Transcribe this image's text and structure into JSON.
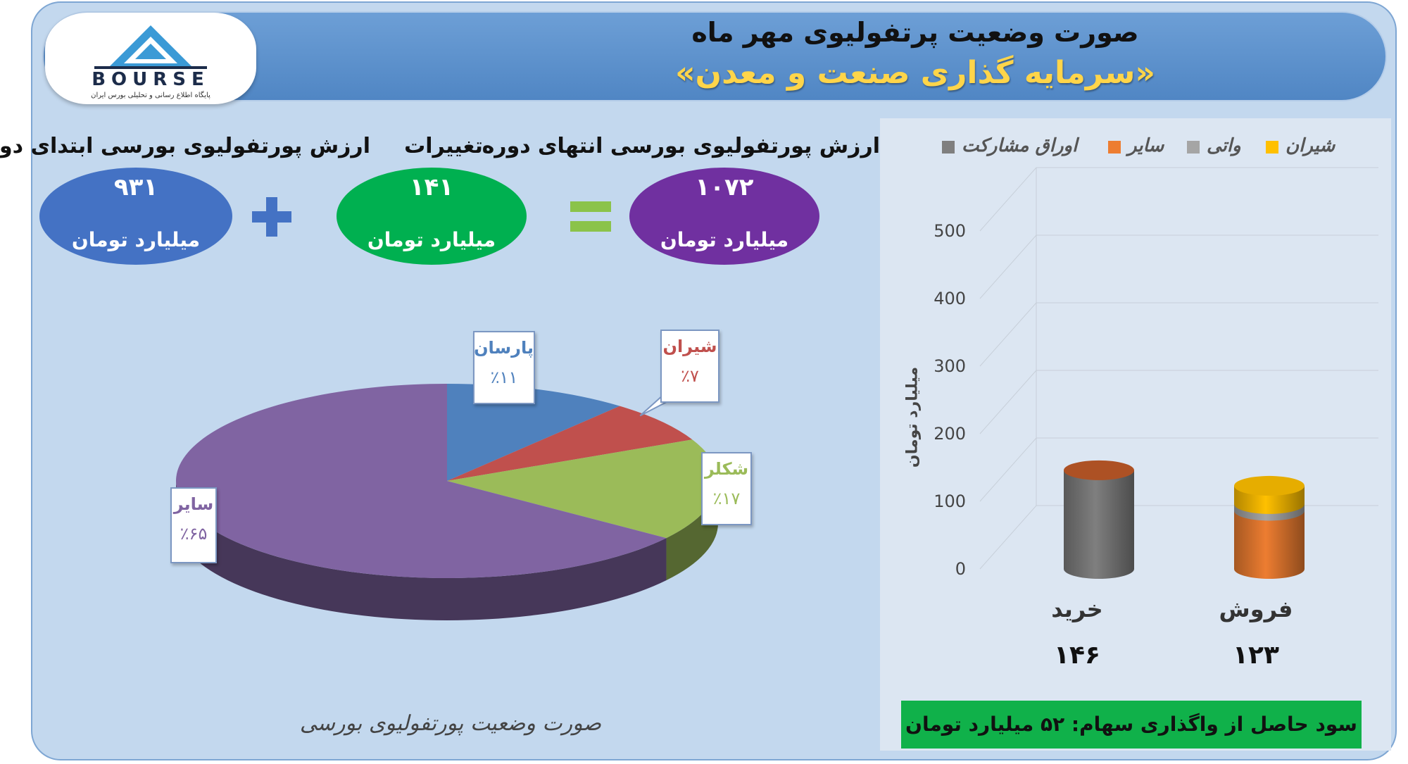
{
  "header": {
    "title": "صورت وضعیت پرتفولیوی مهر ماه",
    "subtitle": "«سرمایه گذاری صنعت و معدن»"
  },
  "logo": {
    "text": "BOURSE",
    "tagline": "پایگاه اطلاع رسانی و تحلیلی بورس ایران"
  },
  "summary": {
    "start": {
      "label": "ارزش پورتفولیوی بورسی ابتدای دوره",
      "value": "۹۳۱",
      "unit": "میلیارد تومان",
      "color": "#4472c4"
    },
    "change": {
      "label": "تغییرات",
      "value": "۱۴۱",
      "unit": "میلیارد تومان",
      "color": "#00b050"
    },
    "end": {
      "label": "ارزش پورتفولیوی بورسی انتهای دوره",
      "value": "۱۰۷۲",
      "unit": "میلیارد تومان",
      "color": "#7030a0"
    }
  },
  "pie_caption": "صورت وضعیت پورتفولیوی بورسی",
  "chart_data": [
    {
      "type": "pie",
      "title": "",
      "slices": [
        {
          "name": "پارسان",
          "value": 11,
          "label": "٪۱۱",
          "color": "#4f81bd"
        },
        {
          "name": "شیران",
          "value": 7,
          "label": "٪۷",
          "color": "#c0504d"
        },
        {
          "name": "شکلر",
          "value": 17,
          "label": "٪۱۷",
          "color": "#9bbb59"
        },
        {
          "name": "سایر",
          "value": 65,
          "label": "٪۶۵",
          "color": "#8064a2"
        }
      ]
    },
    {
      "type": "bar",
      "stacked": true,
      "categories": [
        "خرید",
        "فروش"
      ],
      "category_totals": [
        "۱۴۶",
        "۱۲۳"
      ],
      "series": [
        {
          "name": "شیران",
          "color": "#ffc000",
          "values": [
            0,
            27
          ]
        },
        {
          "name": "واتی",
          "color": "#a5a5a5",
          "values": [
            0,
            10
          ]
        },
        {
          "name": "سایر",
          "color": "#ed7d31",
          "values": [
            0,
            86
          ]
        },
        {
          "name": "اوراق مشارکت",
          "color": "#7f7f7f",
          "values": [
            146,
            0
          ]
        }
      ],
      "yticks": [
        "0",
        "100",
        "200",
        "300",
        "400",
        "500"
      ],
      "ylim": [
        0,
        500
      ],
      "ylabel": "میلیارد تومان",
      "legend_position": "top",
      "grid": true
    }
  ],
  "profit": {
    "text": "سود حاصل از واگذاری سهام: ۵۲ میلیارد تومان"
  }
}
